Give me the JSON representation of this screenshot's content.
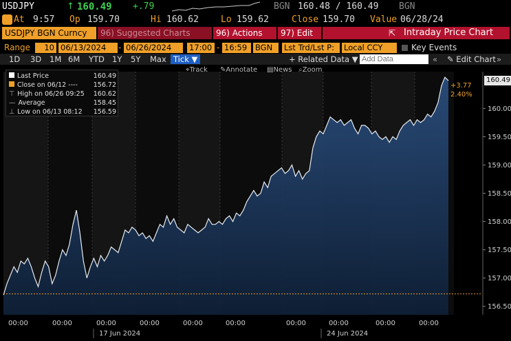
{
  "quote": {
    "ticker": "USDJPY",
    "arrow": "↑",
    "last": "160.49",
    "change": "+.79",
    "source": "BGN",
    "bid_ask": "160.48 / 160.49",
    "source2": "BGN",
    "at_label": "At",
    "at_time": "9:57",
    "op_label": "Op",
    "op": "159.70",
    "hi_label": "Hi",
    "hi": "160.62",
    "lo_label": "Lo",
    "lo": "159.62",
    "close_label": "Close",
    "close": "159.70",
    "value_label": "Value",
    "value_date": "06/28/24"
  },
  "toolbar": {
    "security": "USDJPY BGN Curncy",
    "suggested": "96) Suggested Charts",
    "actions": "96) Actions",
    "edit": "97) Edit",
    "title": "Intraday Price Chart"
  },
  "range": {
    "label": "Range",
    "days": "10",
    "start": "06/13/2024",
    "end": "06/26/2024",
    "time_from": "17:00",
    "time_to": "16:59",
    "source": "BGN",
    "trend": "Lst Trd/Lst P:",
    "currency": "Local CCY",
    "key_events": "Key Events"
  },
  "periods": {
    "items": [
      "1D",
      "3D",
      "1M",
      "6M",
      "YTD",
      "1Y",
      "5Y",
      "Max"
    ],
    "active": "Tick",
    "related": "Related Data",
    "add_placeholder": "Add Data",
    "edit_chart": "Edit Chart"
  },
  "chart_tools": {
    "track": "Track",
    "annotate": "Annotate",
    "news": "News",
    "zoom": "Zoom"
  },
  "legend": {
    "rows": [
      {
        "key": "Last Price",
        "value": "160.49"
      },
      {
        "key": "Close on 06/12",
        "value": "156.72"
      },
      {
        "key": "High on 06/26 09:25",
        "value": "160.62"
      },
      {
        "key": "Average",
        "value": "158.45"
      },
      {
        "key": "Low on 06/13 08:12",
        "value": "156.59"
      }
    ]
  },
  "chart_data": {
    "type": "area",
    "ylim": [
      156.35,
      160.65
    ],
    "y_ticks": [
      "160.00",
      "159.50",
      "159.00",
      "158.50",
      "158.00",
      "157.50",
      "157.00",
      "156.50"
    ],
    "x_labels": [
      "00:00",
      "00:00",
      "00:00",
      "00:00",
      "00:00",
      "00:00",
      "00:00",
      "00:00",
      "00:00",
      "00:00"
    ],
    "date_labels": [
      "17 Jun 2024",
      "24 Jun 2024"
    ],
    "last_price": 160.49,
    "last_price_label": "160.49",
    "close_ref": 156.72,
    "change_label": "+3.77",
    "change_pct_label": "2.40%",
    "series": [
      {
        "values": [
          156.7,
          156.9,
          157.05,
          157.2,
          157.1,
          157.3,
          157.25,
          157.35,
          157.2,
          157.0,
          156.85,
          157.1,
          157.3,
          157.2,
          156.9,
          157.05,
          157.3,
          157.5,
          157.4,
          157.6,
          157.95,
          158.2,
          157.8,
          157.3,
          157.0,
          157.2,
          157.35,
          157.2,
          157.4,
          157.3,
          157.4,
          157.55,
          157.5,
          157.45,
          157.65,
          157.85,
          157.8,
          157.9,
          157.85,
          157.75,
          157.8,
          157.7,
          157.75,
          157.65,
          157.8,
          157.95,
          157.9,
          158.1,
          157.95,
          158.05,
          157.9,
          157.85,
          157.8,
          157.95,
          157.9,
          157.85,
          157.8,
          157.85,
          157.9,
          158.05,
          157.95,
          157.95,
          158.0,
          157.95,
          158.05,
          158.1,
          158.0,
          158.15,
          158.1,
          158.2,
          158.35,
          158.45,
          158.55,
          158.45,
          158.5,
          158.7,
          158.6,
          158.8,
          158.85,
          158.9,
          158.95,
          158.85,
          158.9,
          159.0,
          158.8,
          158.9,
          158.75,
          158.85,
          158.9,
          159.3,
          159.5,
          159.6,
          159.55,
          159.7,
          159.85,
          159.8,
          159.75,
          159.8,
          159.7,
          159.75,
          159.8,
          159.65,
          159.55,
          159.7,
          159.7,
          159.65,
          159.55,
          159.6,
          159.5,
          159.45,
          159.5,
          159.4,
          159.5,
          159.45,
          159.6,
          159.7,
          159.75,
          159.8,
          159.7,
          159.8,
          159.75,
          159.8,
          159.9,
          159.85,
          159.95,
          160.1,
          160.4,
          160.55,
          160.49
        ]
      }
    ]
  },
  "colors": {
    "accent_orange": "#f0a028",
    "toolbar_red": "#b3122e",
    "up_green": "#3fd04f",
    "line": "#e8ecf2",
    "fill_top": "#2a4d7c",
    "fill_bottom": "#0e1f36",
    "active_blue": "#1e5fc4"
  }
}
